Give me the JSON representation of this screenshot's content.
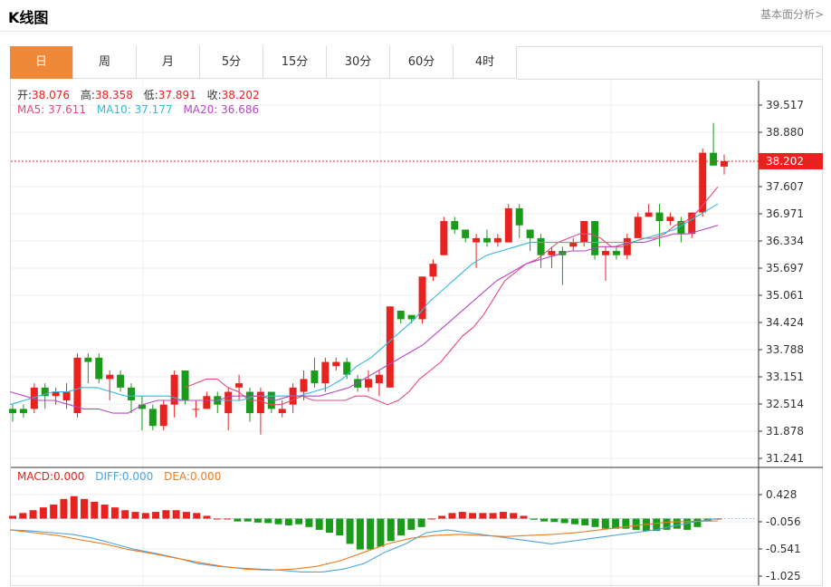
{
  "header": {
    "title": "K线图",
    "link": "基本面分析>"
  },
  "tabs": [
    "日",
    "周",
    "月",
    "5分",
    "15分",
    "30分",
    "60分",
    "4时"
  ],
  "active_tab": 0,
  "ohlc": {
    "open_label": "开:",
    "open": "38.076",
    "high_label": "高:",
    "high": "38.358",
    "low_label": "低:",
    "low": "37.891",
    "close_label": "收:",
    "close": "38.202"
  },
  "ma": {
    "ma5_label": "MA5:",
    "ma5": "37.611",
    "ma10_label": "MA10:",
    "ma10": "37.177",
    "ma20_label": "MA20:",
    "ma20": "36.686"
  },
  "macd": {
    "macd_label": "MACD:",
    "macd": "0.000",
    "diff_label": "DIFF:",
    "diff": "0.000",
    "dea_label": "DEA:",
    "dea": "0.000"
  },
  "colors": {
    "up": "#e8231f",
    "down": "#1a9b1a",
    "ma5": "#e8497a",
    "ma10": "#35b7de",
    "ma20": "#b548c6",
    "diff": "#4ca4e0",
    "dea": "#f07a1f",
    "accent": "#f0883a"
  },
  "chart_data": [
    {
      "type": "candlestick",
      "yaxis_ticks": [
        "39.517",
        "38.880",
        "38.202",
        "37.607",
        "36.971",
        "36.334",
        "35.697",
        "35.061",
        "34.424",
        "33.788",
        "33.151",
        "32.514",
        "31.878",
        "31.241"
      ],
      "ylim": [
        31.241,
        39.517
      ],
      "last_price": 38.202,
      "candles": [
        [
          32.4,
          32.3,
          32.5,
          32.1
        ],
        [
          32.4,
          32.3,
          32.5,
          32.2
        ],
        [
          32.4,
          32.9,
          33.0,
          32.3
        ],
        [
          32.9,
          32.7,
          33.0,
          32.4
        ],
        [
          32.7,
          32.8,
          32.9,
          32.5
        ],
        [
          32.6,
          32.8,
          33.0,
          32.4
        ],
        [
          32.3,
          33.6,
          33.7,
          32.2
        ],
        [
          33.6,
          33.5,
          33.7,
          33.0
        ],
        [
          33.6,
          33.1,
          33.7,
          33.0
        ],
        [
          33.1,
          33.2,
          33.3,
          32.6
        ],
        [
          33.2,
          32.9,
          33.3,
          32.8
        ],
        [
          32.9,
          32.6,
          33.0,
          32.3
        ],
        [
          32.5,
          32.4,
          32.7,
          31.9
        ],
        [
          32.4,
          32.0,
          32.5,
          31.9
        ],
        [
          32.0,
          32.5,
          32.6,
          31.9
        ],
        [
          32.5,
          33.2,
          33.3,
          32.2
        ],
        [
          33.3,
          32.6,
          33.3,
          32.5
        ],
        [
          32.4,
          32.4,
          32.6,
          32.2
        ],
        [
          32.4,
          32.7,
          32.8,
          32.4
        ],
        [
          32.7,
          32.5,
          32.8,
          32.3
        ],
        [
          32.3,
          32.8,
          32.9,
          31.9
        ],
        [
          32.9,
          33.0,
          33.2,
          32.6
        ],
        [
          32.8,
          32.3,
          32.9,
          32.1
        ],
        [
          32.3,
          32.8,
          32.9,
          31.8
        ],
        [
          32.8,
          32.4,
          32.8,
          32.3
        ],
        [
          32.3,
          32.4,
          32.6,
          32.2
        ],
        [
          32.5,
          32.9,
          33.0,
          32.3
        ],
        [
          32.8,
          33.1,
          33.3,
          32.6
        ],
        [
          33.3,
          33.0,
          33.6,
          32.9
        ],
        [
          33.0,
          33.5,
          33.6,
          32.8
        ],
        [
          33.4,
          33.5,
          33.6,
          33.3
        ],
        [
          33.5,
          33.2,
          33.6,
          33.1
        ],
        [
          33.1,
          32.9,
          33.2,
          32.8
        ],
        [
          32.9,
          33.1,
          33.3,
          32.8
        ],
        [
          33.0,
          33.2,
          33.3,
          32.7
        ],
        [
          32.9,
          34.8,
          34.8,
          32.9
        ],
        [
          34.7,
          34.5,
          34.7,
          34.4
        ],
        [
          34.6,
          34.5,
          34.6,
          34.4
        ],
        [
          34.5,
          35.5,
          35.5,
          34.4
        ],
        [
          35.5,
          35.8,
          35.9,
          35.4
        ],
        [
          36.0,
          36.8,
          36.9,
          36.0
        ],
        [
          36.8,
          36.6,
          36.9,
          36.5
        ],
        [
          36.6,
          36.4,
          36.6,
          36.3
        ],
        [
          36.3,
          36.4,
          36.5,
          35.7
        ],
        [
          36.4,
          36.3,
          36.6,
          36.2
        ],
        [
          36.3,
          36.4,
          36.5,
          36.2
        ],
        [
          36.3,
          37.1,
          37.2,
          36.3
        ],
        [
          37.1,
          36.7,
          37.2,
          36.4
        ],
        [
          36.6,
          36.4,
          36.6,
          36.1
        ],
        [
          36.4,
          36.0,
          36.5,
          35.7
        ],
        [
          36.0,
          36.1,
          36.2,
          35.7
        ],
        [
          36.1,
          36.0,
          36.2,
          35.3
        ],
        [
          36.2,
          36.3,
          36.4,
          36.1
        ],
        [
          36.3,
          36.8,
          36.8,
          36.2
        ],
        [
          36.8,
          36.0,
          36.8,
          35.9
        ],
        [
          36.0,
          36.1,
          36.2,
          35.4
        ],
        [
          36.1,
          36.0,
          36.2,
          35.9
        ],
        [
          36.0,
          36.4,
          36.5,
          35.9
        ],
        [
          36.4,
          36.9,
          37.0,
          36.4
        ],
        [
          36.9,
          37.0,
          37.2,
          36.9
        ],
        [
          37.0,
          36.8,
          37.2,
          36.2
        ],
        [
          36.8,
          36.9,
          37.0,
          36.7
        ],
        [
          36.8,
          36.5,
          36.9,
          36.3
        ],
        [
          36.5,
          37.0,
          37.0,
          36.4
        ],
        [
          37.0,
          38.4,
          38.5,
          36.9
        ],
        [
          38.4,
          38.1,
          39.1,
          38.1
        ],
        [
          38.076,
          38.202,
          38.358,
          37.891
        ]
      ],
      "ma5": [
        32.9,
        33.0,
        33.1,
        33.1,
        32.9,
        32.8,
        32.6,
        32.6,
        32.5,
        32.5,
        32.6,
        32.7,
        32.6,
        32.6,
        32.6,
        32.6,
        32.7,
        32.7,
        32.6,
        32.5,
        32.6,
        32.8,
        33.1,
        33.3,
        33.5,
        33.8,
        34.1,
        34.3,
        34.6,
        35.0,
        35.4,
        35.6,
        35.8,
        35.9,
        36.1,
        36.3,
        36.4,
        36.5,
        36.5,
        36.4,
        36.2,
        36.2,
        36.3,
        36.4,
        36.4,
        36.5,
        36.7,
        36.8,
        37.0,
        37.3,
        37.6
      ],
      "ma5_start": 16,
      "ma10": [
        32.5,
        32.6,
        32.7,
        32.8,
        32.8,
        32.9,
        32.9,
        32.8,
        32.7,
        32.7,
        32.7,
        32.7,
        32.6,
        32.6,
        32.6,
        32.6,
        32.6,
        32.7,
        32.7,
        32.7,
        32.7,
        32.8,
        32.9,
        33.1,
        33.4,
        33.6,
        33.9,
        34.2,
        34.5,
        34.9,
        35.2,
        35.5,
        35.8,
        36.0,
        36.1,
        36.2,
        36.3,
        36.3,
        36.3,
        36.3,
        36.3,
        36.3,
        36.3,
        36.3,
        36.4,
        36.5,
        36.6,
        36.8,
        37.0,
        37.2
      ],
      "ma10_start": 0,
      "ma20": [
        32.8,
        32.7,
        32.6,
        32.6,
        32.5,
        32.4,
        32.4,
        32.3,
        32.3,
        32.5,
        32.6,
        32.6,
        32.6,
        32.6,
        32.6,
        32.7,
        32.7,
        32.7,
        32.6,
        32.7,
        32.7,
        32.7,
        32.8,
        32.9,
        33.1,
        33.3,
        33.5,
        33.7,
        33.9,
        34.2,
        34.5,
        34.8,
        35.1,
        35.4,
        35.6,
        35.8,
        35.9,
        36.0,
        36.1,
        36.1,
        36.2,
        36.2,
        36.3,
        36.3,
        36.4,
        36.5,
        36.5,
        36.6,
        36.7
      ],
      "ma20_start": 0
    },
    {
      "type": "macd",
      "yaxis_ticks": [
        "0.428",
        "-0.056",
        "-0.541",
        "-1.025"
      ],
      "ylim": [
        -1.025,
        0.428
      ],
      "histogram": [
        0.05,
        0.1,
        0.15,
        0.2,
        0.25,
        0.35,
        0.4,
        0.35,
        0.3,
        0.25,
        0.2,
        0.15,
        0.12,
        0.1,
        0.12,
        0.15,
        0.15,
        0.12,
        0.1,
        0.05,
        0,
        0,
        -0.05,
        -0.05,
        -0.07,
        -0.08,
        -0.1,
        -0.12,
        -0.1,
        -0.15,
        -0.2,
        -0.25,
        -0.3,
        -0.45,
        -0.55,
        -0.55,
        -0.5,
        -0.4,
        -0.3,
        -0.2,
        -0.15,
        0,
        0.05,
        0.1,
        0.12,
        0.1,
        0.1,
        0.1,
        0.12,
        0.1,
        0.05,
        -0.02,
        -0.05,
        -0.06,
        -0.08,
        -0.1,
        -0.12,
        -0.15,
        -0.18,
        -0.18,
        -0.18,
        -0.2,
        -0.22,
        -0.22,
        -0.2,
        -0.18,
        -0.2,
        -0.15,
        -0.05,
        0
      ],
      "diff": [
        -0.2,
        -0.22,
        -0.25,
        -0.28,
        -0.35,
        -0.45,
        -0.55,
        -0.62,
        -0.7,
        -0.8,
        -0.85,
        -0.88,
        -0.9,
        -0.92,
        -0.95,
        -0.95,
        -0.9,
        -0.8,
        -0.6,
        -0.45,
        -0.25,
        -0.2,
        -0.25,
        -0.3,
        -0.35,
        -0.4,
        -0.45,
        -0.4,
        -0.35,
        -0.3,
        -0.25,
        -0.2,
        -0.12,
        -0.05,
        0
      ],
      "dea": [
        -0.2,
        -0.25,
        -0.3,
        -0.38,
        -0.45,
        -0.55,
        -0.62,
        -0.7,
        -0.78,
        -0.85,
        -0.9,
        -0.92,
        -0.9,
        -0.85,
        -0.75,
        -0.6,
        -0.45,
        -0.35,
        -0.3,
        -0.28,
        -0.3,
        -0.32,
        -0.3,
        -0.28,
        -0.25,
        -0.2,
        -0.15,
        -0.1,
        -0.06,
        -0.05,
        -0.04
      ]
    }
  ]
}
